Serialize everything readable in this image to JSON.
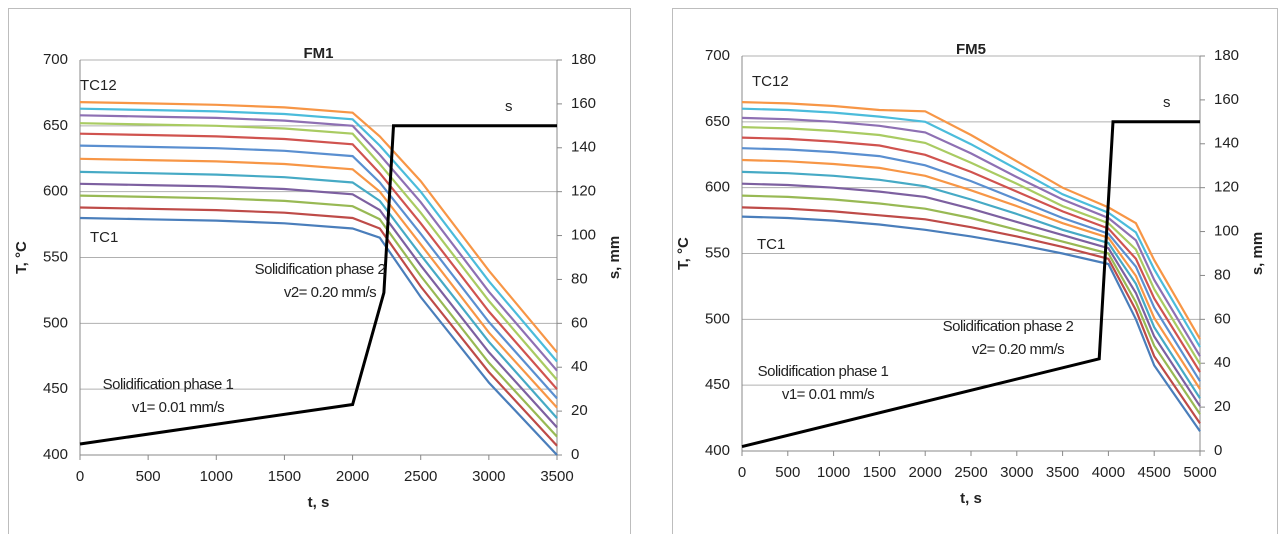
{
  "chart_data": [
    {
      "type": "line",
      "title": "FM1",
      "x_label": "t, s",
      "y_label": "T, °C",
      "y2_label": "s, mm",
      "x": [
        0,
        500,
        1000,
        1500,
        2000,
        2200,
        2500,
        3000,
        3500
      ],
      "xlim": [
        0,
        3500
      ],
      "xticks": [
        0,
        500,
        1000,
        1500,
        2000,
        2500,
        3000,
        3500
      ],
      "ylim": [
        400,
        700
      ],
      "yticks": [
        400,
        450,
        500,
        550,
        600,
        650,
        700
      ],
      "y2lim": [
        0,
        180
      ],
      "y2ticks": [
        0,
        20,
        40,
        60,
        80,
        100,
        120,
        140,
        160,
        180
      ],
      "grid": true,
      "series": [
        {
          "name": "TC1",
          "color": "#4a7ebb",
          "values": [
            580,
            579,
            578,
            576,
            572,
            565,
            520,
            455,
            400
          ]
        },
        {
          "color": "#be4b48",
          "values": [
            588,
            587,
            586,
            584,
            580,
            572,
            528,
            463,
            407
          ]
        },
        {
          "color": "#98b954",
          "values": [
            597,
            596,
            595,
            593,
            589,
            579,
            536,
            470,
            414
          ]
        },
        {
          "color": "#7d60a0",
          "values": [
            606,
            605,
            604,
            602,
            598,
            586,
            544,
            478,
            421
          ]
        },
        {
          "color": "#46aac5",
          "values": [
            615,
            614,
            613,
            611,
            607,
            593,
            552,
            486,
            428
          ]
        },
        {
          "color": "#f79646",
          "values": [
            625,
            624,
            623,
            621,
            617,
            600,
            560,
            493,
            436
          ]
        },
        {
          "color": "#5a8fd0",
          "values": [
            635,
            634,
            633,
            631,
            627,
            607,
            568,
            501,
            443
          ]
        },
        {
          "color": "#d0534f",
          "values": [
            644,
            643,
            642,
            640,
            636,
            614,
            576,
            509,
            450
          ]
        },
        {
          "color": "#a9cb62",
          "values": [
            652,
            651,
            650,
            648,
            644,
            621,
            584,
            517,
            457
          ]
        },
        {
          "color": "#8e70b3",
          "values": [
            658,
            657,
            656,
            654,
            650,
            628,
            592,
            524,
            464
          ]
        },
        {
          "color": "#4bbcdb",
          "values": [
            663,
            662,
            661,
            659,
            655,
            635,
            600,
            532,
            471
          ]
        },
        {
          "name": "TC12",
          "color": "#f79646",
          "values": [
            668,
            667,
            666,
            664,
            660,
            642,
            608,
            540,
            478
          ]
        },
        {
          "name": "s",
          "color": "#000000",
          "axis": "y2",
          "x": [
            0,
            2000,
            2230,
            2300,
            3500
          ],
          "values": [
            5,
            23,
            74,
            150,
            150
          ]
        }
      ],
      "annotations": [
        "Solidification phase 2",
        "v2= 0.20 mm/s",
        "Solidification phase 1",
        "v1= 0.01 mm/s"
      ]
    },
    {
      "type": "line",
      "title": "FM5",
      "x_label": "t, s",
      "y_label": "T, °C",
      "y2_label": "s, mm",
      "x": [
        0,
        500,
        1000,
        1500,
        2000,
        2500,
        3000,
        3500,
        4000,
        4300,
        4500,
        5000
      ],
      "xlim": [
        0,
        5000
      ],
      "xticks": [
        0,
        500,
        1000,
        1500,
        2000,
        2500,
        3000,
        3500,
        4000,
        4500,
        5000
      ],
      "ylim": [
        400,
        700
      ],
      "yticks": [
        400,
        450,
        500,
        550,
        600,
        650,
        700
      ],
      "y2lim": [
        0,
        180
      ],
      "y2ticks": [
        0,
        20,
        40,
        60,
        80,
        100,
        120,
        140,
        160,
        180
      ],
      "grid": true,
      "series": [
        {
          "name": "TC1",
          "color": "#4a7ebb",
          "values": [
            578,
            577,
            575,
            572,
            568,
            563,
            557,
            550,
            542,
            500,
            465,
            415
          ]
        },
        {
          "color": "#be4b48",
          "values": [
            585,
            584,
            582,
            579,
            576,
            570,
            563,
            555,
            546,
            507,
            472,
            421
          ]
        },
        {
          "color": "#98b954",
          "values": [
            594,
            593,
            591,
            588,
            584,
            577,
            568,
            559,
            550,
            513,
            480,
            428
          ]
        },
        {
          "color": "#7d60a0",
          "values": [
            603,
            602,
            600,
            597,
            593,
            584,
            574,
            564,
            554,
            520,
            487,
            434
          ]
        },
        {
          "color": "#46aac5",
          "values": [
            612,
            611,
            609,
            606,
            601,
            591,
            580,
            568,
            558,
            527,
            494,
            440
          ]
        },
        {
          "color": "#f79646",
          "values": [
            621,
            620,
            618,
            615,
            609,
            598,
            586,
            573,
            562,
            533,
            501,
            447
          ]
        },
        {
          "color": "#5a8fd0",
          "values": [
            630,
            629,
            627,
            624,
            617,
            605,
            591,
            577,
            565,
            540,
            509,
            453
          ]
        },
        {
          "color": "#d0534f",
          "values": [
            638,
            637,
            635,
            632,
            625,
            612,
            597,
            582,
            569,
            546,
            516,
            460
          ]
        },
        {
          "color": "#a9cb62",
          "values": [
            646,
            645,
            643,
            640,
            634,
            619,
            603,
            586,
            573,
            553,
            523,
            466
          ]
        },
        {
          "color": "#8e70b3",
          "values": [
            653,
            652,
            650,
            647,
            642,
            626,
            608,
            591,
            577,
            560,
            530,
            472
          ]
        },
        {
          "color": "#4bbcdb",
          "values": [
            660,
            659,
            657,
            654,
            650,
            633,
            614,
            595,
            581,
            566,
            538,
            479
          ]
        },
        {
          "name": "TC12",
          "color": "#f79646",
          "values": [
            665,
            664,
            662,
            659,
            658,
            640,
            620,
            600,
            585,
            573,
            545,
            485
          ]
        },
        {
          "name": "s",
          "color": "#000000",
          "axis": "y2",
          "x": [
            0,
            3900,
            4050,
            5000
          ],
          "values": [
            2,
            42,
            150,
            150
          ]
        }
      ],
      "annotations": [
        "Solidification phase 2",
        "v2= 0.20 mm/s",
        "Solidification phase 1",
        "v1= 0.01 mm/s"
      ]
    }
  ]
}
